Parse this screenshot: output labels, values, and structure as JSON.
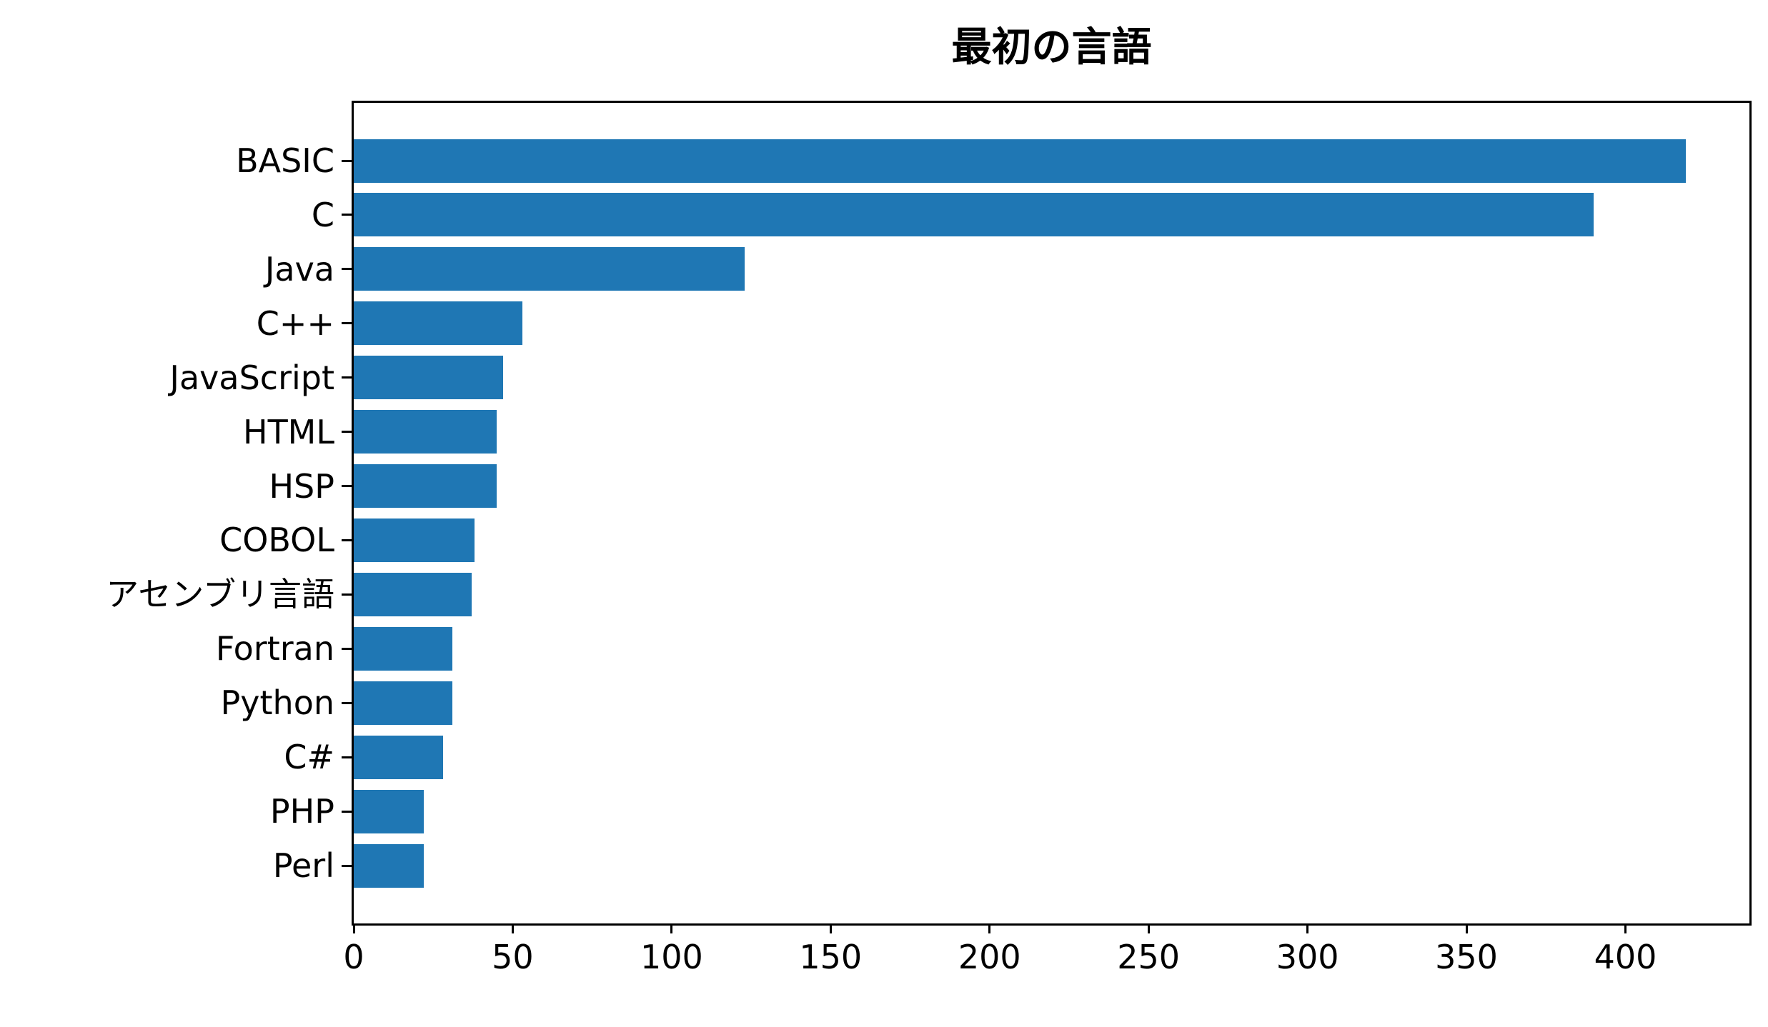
{
  "chart_data": {
    "type": "bar",
    "orientation": "horizontal",
    "title": "最初の言語",
    "categories": [
      "BASIC",
      "C",
      "Java",
      "C++",
      "JavaScript",
      "HTML",
      "HSP",
      "COBOL",
      "アセンブリ言語",
      "Fortran",
      "Python",
      "C#",
      "PHP",
      "Perl"
    ],
    "values": [
      419,
      390,
      123,
      53,
      47,
      45,
      45,
      38,
      37,
      31,
      31,
      28,
      22,
      22
    ],
    "x_ticks": [
      0,
      50,
      100,
      150,
      200,
      250,
      300,
      350,
      400
    ],
    "xlim": [
      0,
      439
    ],
    "xlabel": "",
    "ylabel": "",
    "grid": false,
    "legend": null,
    "bar_color": "#1f77b4",
    "background_color": "#ffffff",
    "text_color": "#000000"
  }
}
